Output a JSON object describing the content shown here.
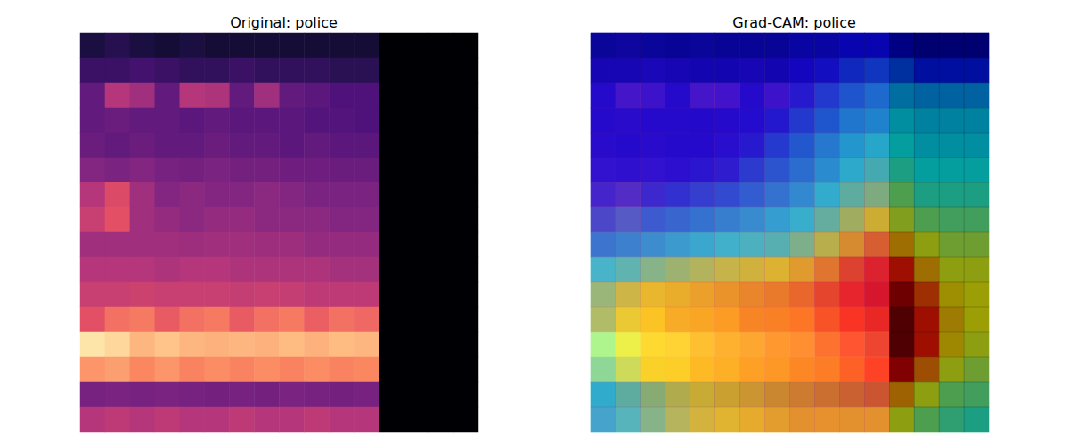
{
  "chart_data": [
    {
      "type": "heatmap",
      "title": "Original: police",
      "color": "magma",
      "tick_labels": false,
      "zlim": [
        0,
        1
      ],
      "cells": [
        [
          0.12,
          0.15,
          0.12,
          0.1,
          0.12,
          0.1,
          0.1,
          0.1,
          0.1,
          0.1,
          0.1,
          0.1,
          0,
          0,
          0,
          0
        ],
        [
          0.2,
          0.2,
          0.22,
          0.2,
          0.18,
          0.18,
          0.2,
          0.18,
          0.18,
          0.18,
          0.16,
          0.16,
          0,
          0,
          0,
          0
        ],
        [
          0.3,
          0.5,
          0.45,
          0.3,
          0.5,
          0.48,
          0.3,
          0.45,
          0.3,
          0.28,
          0.25,
          0.25,
          0,
          0,
          0,
          0
        ],
        [
          0.3,
          0.32,
          0.3,
          0.3,
          0.28,
          0.3,
          0.28,
          0.28,
          0.28,
          0.26,
          0.26,
          0.25,
          0,
          0,
          0,
          0
        ],
        [
          0.32,
          0.3,
          0.32,
          0.3,
          0.3,
          0.32,
          0.3,
          0.3,
          0.28,
          0.3,
          0.28,
          0.28,
          0,
          0,
          0,
          0
        ],
        [
          0.38,
          0.36,
          0.38,
          0.35,
          0.34,
          0.36,
          0.34,
          0.34,
          0.33,
          0.33,
          0.32,
          0.32,
          0,
          0,
          0,
          0
        ],
        [
          0.5,
          0.6,
          0.45,
          0.38,
          0.4,
          0.38,
          0.38,
          0.4,
          0.38,
          0.36,
          0.36,
          0.36,
          0,
          0,
          0,
          0
        ],
        [
          0.55,
          0.62,
          0.45,
          0.42,
          0.4,
          0.42,
          0.42,
          0.4,
          0.4,
          0.4,
          0.38,
          0.38,
          0,
          0,
          0,
          0
        ],
        [
          0.45,
          0.45,
          0.45,
          0.45,
          0.44,
          0.45,
          0.45,
          0.44,
          0.44,
          0.42,
          0.42,
          0.42,
          0,
          0,
          0,
          0
        ],
        [
          0.5,
          0.5,
          0.5,
          0.48,
          0.5,
          0.5,
          0.48,
          0.48,
          0.48,
          0.48,
          0.46,
          0.46,
          0,
          0,
          0,
          0
        ],
        [
          0.55,
          0.55,
          0.56,
          0.55,
          0.55,
          0.55,
          0.54,
          0.55,
          0.54,
          0.52,
          0.52,
          0.52,
          0,
          0,
          0,
          0
        ],
        [
          0.62,
          0.7,
          0.72,
          0.65,
          0.7,
          0.72,
          0.65,
          0.7,
          0.72,
          0.66,
          0.7,
          0.68,
          0,
          0,
          0,
          0
        ],
        [
          0.95,
          0.92,
          0.85,
          0.88,
          0.85,
          0.84,
          0.85,
          0.84,
          0.86,
          0.84,
          0.86,
          0.85,
          0,
          0,
          0,
          0
        ],
        [
          0.78,
          0.8,
          0.75,
          0.78,
          0.74,
          0.76,
          0.74,
          0.76,
          0.74,
          0.76,
          0.74,
          0.75,
          0,
          0,
          0,
          0
        ],
        [
          0.35,
          0.36,
          0.35,
          0.36,
          0.35,
          0.34,
          0.35,
          0.34,
          0.36,
          0.35,
          0.34,
          0.35,
          0,
          0,
          0,
          0
        ],
        [
          0.5,
          0.52,
          0.5,
          0.52,
          0.5,
          0.5,
          0.52,
          0.5,
          0.5,
          0.52,
          0.5,
          0.5,
          0,
          0,
          0,
          0
        ]
      ]
    },
    {
      "type": "heatmap",
      "title": "Grad-CAM: police",
      "color": "jet",
      "tick_labels": false,
      "zlim": [
        0,
        1
      ],
      "cells": [
        [
          0.08,
          0.08,
          0.08,
          0.08,
          0.08,
          0.08,
          0.08,
          0.08,
          0.1,
          0.1,
          0.12,
          0.12,
          0.08,
          0.05,
          0.05,
          0.05
        ],
        [
          0.1,
          0.1,
          0.1,
          0.1,
          0.1,
          0.1,
          0.1,
          0.1,
          0.12,
          0.14,
          0.18,
          0.2,
          0.2,
          0.15,
          0.15,
          0.15
        ],
        [
          0.12,
          0.12,
          0.12,
          0.12,
          0.12,
          0.12,
          0.12,
          0.12,
          0.15,
          0.2,
          0.25,
          0.28,
          0.3,
          0.28,
          0.28,
          0.28
        ],
        [
          0.12,
          0.12,
          0.12,
          0.12,
          0.12,
          0.12,
          0.13,
          0.15,
          0.2,
          0.25,
          0.3,
          0.32,
          0.35,
          0.33,
          0.33,
          0.33
        ],
        [
          0.12,
          0.12,
          0.12,
          0.12,
          0.12,
          0.13,
          0.15,
          0.2,
          0.25,
          0.3,
          0.35,
          0.38,
          0.38,
          0.35,
          0.35,
          0.35
        ],
        [
          0.13,
          0.13,
          0.13,
          0.13,
          0.14,
          0.15,
          0.2,
          0.24,
          0.28,
          0.33,
          0.38,
          0.42,
          0.42,
          0.38,
          0.38,
          0.38
        ],
        [
          0.15,
          0.15,
          0.16,
          0.18,
          0.2,
          0.22,
          0.25,
          0.28,
          0.32,
          0.38,
          0.45,
          0.5,
          0.5,
          0.42,
          0.42,
          0.42
        ],
        [
          0.2,
          0.22,
          0.24,
          0.26,
          0.28,
          0.3,
          0.32,
          0.35,
          0.38,
          0.45,
          0.55,
          0.62,
          0.58,
          0.5,
          0.48,
          0.48
        ],
        [
          0.28,
          0.3,
          0.32,
          0.34,
          0.36,
          0.38,
          0.4,
          0.42,
          0.48,
          0.58,
          0.68,
          0.75,
          0.7,
          0.6,
          0.55,
          0.55
        ],
        [
          0.38,
          0.42,
          0.48,
          0.52,
          0.55,
          0.58,
          0.6,
          0.62,
          0.66,
          0.72,
          0.8,
          0.85,
          0.85,
          0.7,
          0.6,
          0.6
        ],
        [
          0.5,
          0.58,
          0.62,
          0.64,
          0.66,
          0.68,
          0.7,
          0.72,
          0.75,
          0.8,
          0.85,
          0.9,
          0.95,
          0.8,
          0.65,
          0.62
        ],
        [
          0.52,
          0.6,
          0.64,
          0.66,
          0.68,
          0.7,
          0.72,
          0.74,
          0.76,
          0.8,
          0.86,
          0.9,
          1.0,
          0.85,
          0.68,
          0.62
        ],
        [
          0.5,
          0.6,
          0.64,
          0.66,
          0.68,
          0.7,
          0.72,
          0.74,
          0.76,
          0.8,
          0.85,
          0.9,
          1.0,
          0.85,
          0.66,
          0.6
        ],
        [
          0.45,
          0.55,
          0.62,
          0.64,
          0.66,
          0.68,
          0.7,
          0.72,
          0.74,
          0.76,
          0.8,
          0.85,
          0.92,
          0.75,
          0.6,
          0.55
        ],
        [
          0.38,
          0.45,
          0.52,
          0.58,
          0.62,
          0.64,
          0.66,
          0.68,
          0.7,
          0.72,
          0.74,
          0.76,
          0.72,
          0.6,
          0.5,
          0.48
        ],
        [
          0.35,
          0.4,
          0.48,
          0.55,
          0.6,
          0.62,
          0.64,
          0.66,
          0.68,
          0.68,
          0.68,
          0.68,
          0.6,
          0.5,
          0.45,
          0.42
        ]
      ],
      "overlay": {
        "color": "magma",
        "cells": [
          [
            0.12,
            0.15,
            0.12,
            0.1,
            0.12,
            0.1,
            0.1,
            0.1,
            0.1,
            0.1,
            0.1,
            0.1,
            0,
            0,
            0,
            0
          ],
          [
            0.2,
            0.2,
            0.22,
            0.2,
            0.18,
            0.18,
            0.2,
            0.18,
            0.18,
            0.18,
            0.16,
            0.16,
            0,
            0,
            0,
            0
          ],
          [
            0.3,
            0.5,
            0.45,
            0.3,
            0.5,
            0.48,
            0.3,
            0.45,
            0.3,
            0.28,
            0.25,
            0.25,
            0,
            0,
            0,
            0
          ],
          [
            0.3,
            0.32,
            0.3,
            0.3,
            0.28,
            0.3,
            0.28,
            0.28,
            0.28,
            0.26,
            0.26,
            0.25,
            0,
            0,
            0,
            0
          ],
          [
            0.32,
            0.3,
            0.32,
            0.3,
            0.3,
            0.32,
            0.3,
            0.3,
            0.28,
            0.3,
            0.28,
            0.28,
            0,
            0,
            0,
            0
          ],
          [
            0.38,
            0.36,
            0.38,
            0.35,
            0.34,
            0.36,
            0.34,
            0.34,
            0.33,
            0.33,
            0.32,
            0.32,
            0,
            0,
            0,
            0
          ],
          [
            0.5,
            0.6,
            0.45,
            0.38,
            0.4,
            0.38,
            0.38,
            0.4,
            0.38,
            0.36,
            0.36,
            0.36,
            0,
            0,
            0,
            0
          ],
          [
            0.55,
            0.62,
            0.45,
            0.42,
            0.4,
            0.42,
            0.42,
            0.4,
            0.4,
            0.4,
            0.38,
            0.38,
            0,
            0,
            0,
            0
          ],
          [
            0.45,
            0.45,
            0.45,
            0.45,
            0.44,
            0.45,
            0.45,
            0.44,
            0.44,
            0.42,
            0.42,
            0.42,
            0,
            0,
            0,
            0
          ],
          [
            0.5,
            0.5,
            0.5,
            0.48,
            0.5,
            0.5,
            0.48,
            0.48,
            0.48,
            0.48,
            0.46,
            0.46,
            0,
            0,
            0,
            0
          ],
          [
            0.55,
            0.55,
            0.56,
            0.55,
            0.55,
            0.55,
            0.54,
            0.55,
            0.54,
            0.52,
            0.52,
            0.52,
            0,
            0,
            0,
            0
          ],
          [
            0.62,
            0.7,
            0.72,
            0.65,
            0.7,
            0.72,
            0.65,
            0.7,
            0.72,
            0.66,
            0.7,
            0.68,
            0,
            0,
            0,
            0
          ],
          [
            0.95,
            0.92,
            0.85,
            0.88,
            0.85,
            0.84,
            0.85,
            0.84,
            0.86,
            0.84,
            0.86,
            0.85,
            0,
            0,
            0,
            0
          ],
          [
            0.78,
            0.8,
            0.75,
            0.78,
            0.74,
            0.76,
            0.74,
            0.76,
            0.74,
            0.76,
            0.74,
            0.75,
            0,
            0,
            0,
            0
          ],
          [
            0.35,
            0.36,
            0.35,
            0.36,
            0.35,
            0.34,
            0.35,
            0.34,
            0.36,
            0.35,
            0.34,
            0.35,
            0,
            0,
            0,
            0
          ],
          [
            0.5,
            0.52,
            0.5,
            0.52,
            0.5,
            0.5,
            0.52,
            0.5,
            0.5,
            0.52,
            0.5,
            0.5,
            0,
            0,
            0,
            0
          ]
        ]
      }
    }
  ]
}
